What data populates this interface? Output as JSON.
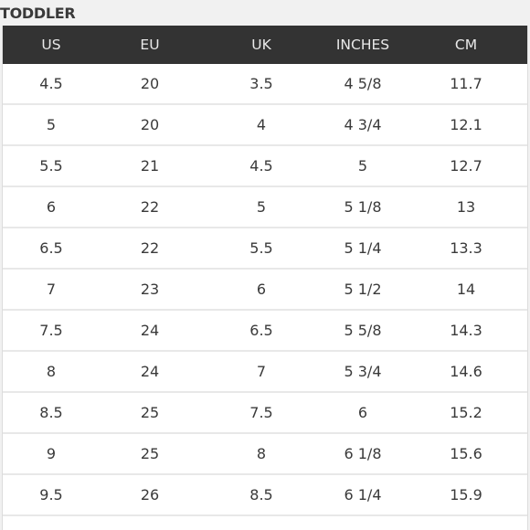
{
  "section_title": "TODDLER",
  "columns": [
    "US",
    "EU",
    "UK",
    "INCHES",
    "CM"
  ],
  "rows": [
    [
      "4.5",
      "20",
      "3.5",
      "4 5/8",
      "11.7"
    ],
    [
      "5",
      "20",
      "4",
      "4 3/4",
      "12.1"
    ],
    [
      "5.5",
      "21",
      "4.5",
      "5",
      "12.7"
    ],
    [
      "6",
      "22",
      "5",
      "5 1/8",
      "13"
    ],
    [
      "6.5",
      "22",
      "5.5",
      "5 1/4",
      "13.3"
    ],
    [
      "7",
      "23",
      "6",
      "5 1/2",
      "14"
    ],
    [
      "7.5",
      "24",
      "6.5",
      "5 5/8",
      "14.3"
    ],
    [
      "8",
      "24",
      "7",
      "5 3/4",
      "14.6"
    ],
    [
      "8.5",
      "25",
      "7.5",
      "6",
      "15.2"
    ],
    [
      "9",
      "25",
      "8",
      "6 1/8",
      "15.6"
    ],
    [
      "9.5",
      "26",
      "8.5",
      "6 1/4",
      "15.9"
    ]
  ],
  "colors": {
    "header_background": "#333333",
    "header_text": "#e9e9e9",
    "page_background": "#f1f1f1",
    "row_divider": "#e8e8e8"
  }
}
